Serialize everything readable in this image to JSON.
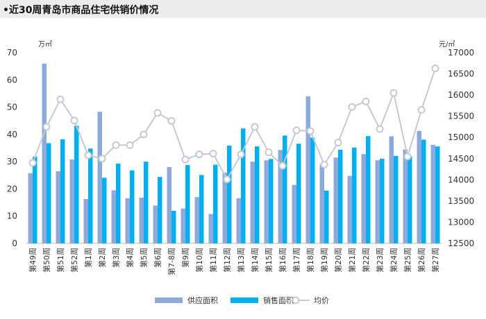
{
  "header": {
    "title": "•近30周青岛市商品住宅供销价情况"
  },
  "chart_data": {
    "type": "bar",
    "title": "",
    "left_unit": "万㎡",
    "right_unit": "元/㎡",
    "ylim_left": [
      0,
      70
    ],
    "yticks_left": [
      "0",
      "10",
      "20",
      "30",
      "40",
      "50",
      "60",
      "70"
    ],
    "ylim_right": [
      12500,
      17000
    ],
    "yticks_right": [
      "12500",
      "13000",
      "13500",
      "14000",
      "14500",
      "15000",
      "15500",
      "16000",
      "16500",
      "17000"
    ],
    "categories": [
      "第49周",
      "第50周",
      "第51周",
      "第52周",
      "第1周",
      "第2周",
      "第3周",
      "第4周",
      "第5周",
      "第6周",
      "第7-8周",
      "第9周",
      "第10周",
      "第11周",
      "第12周",
      "第13周",
      "第14周",
      "第15周",
      "第16周",
      "第17周",
      "第18周",
      "第19周",
      "第20周",
      "第21周",
      "第22周",
      "第23周",
      "第24周",
      "第25周",
      "第26周",
      "第27周"
    ],
    "series": [
      {
        "name": "供应面积",
        "type": "bar",
        "axis": "left",
        "color": "#8eaadb",
        "values": [
          25.8,
          66,
          26.5,
          30.8,
          16.3,
          48.3,
          19.5,
          16.6,
          16.8,
          13.9,
          28,
          12.8,
          17,
          10.8,
          26,
          16.6,
          30,
          30.5,
          34.3,
          21.5,
          54,
          29,
          31.5,
          24.8,
          32.8,
          30.5,
          39.3,
          34.5,
          41.3,
          36.2
        ]
      },
      {
        "name": "销售面积",
        "type": "bar",
        "axis": "left",
        "color": "#00b0f0",
        "values": [
          31.8,
          36.8,
          38.2,
          43.2,
          34.8,
          24.1,
          29.3,
          26.8,
          30,
          24.4,
          12,
          28.8,
          25.1,
          28.9,
          35.9,
          42.2,
          35.6,
          31,
          39.6,
          36.6,
          38.8,
          19.4,
          34.4,
          35.2,
          39.4,
          31.1,
          32.1,
          31.9,
          38.1,
          35.6
        ]
      },
      {
        "name": "均价",
        "type": "line",
        "axis": "right",
        "color": "#c5c9d6",
        "values": [
          14400,
          15250,
          15900,
          15400,
          14580,
          14500,
          14820,
          14820,
          15070,
          15580,
          15390,
          14480,
          14600,
          14620,
          14010,
          14600,
          15250,
          14650,
          14330,
          15170,
          15150,
          14360,
          14880,
          15720,
          15850,
          15200,
          16050,
          14550,
          15650,
          16630
        ]
      }
    ],
    "legend_position": "bottom-center",
    "grid": false
  }
}
